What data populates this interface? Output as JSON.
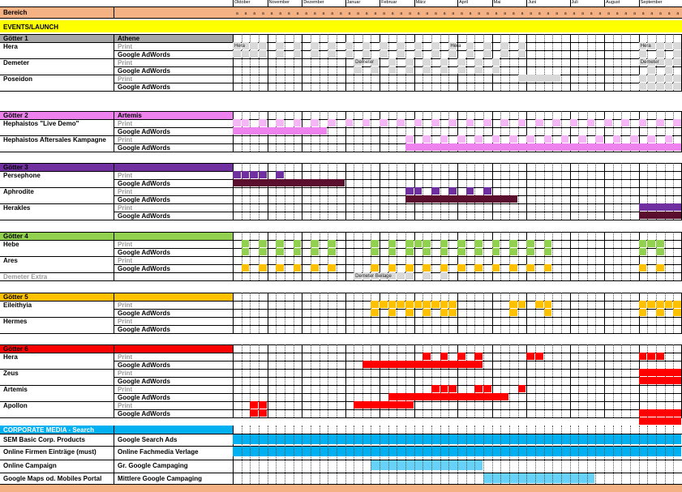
{
  "header": {
    "bereich": "Bereich",
    "months": [
      "Oktober",
      "November",
      "Dezember",
      "Januar",
      "Februar",
      "März",
      "April",
      "Mai",
      "Juni",
      "Juli",
      "August",
      "September"
    ],
    "week_marker": "a"
  },
  "events_title": "EVENTS/LAUNCH",
  "colors": {
    "header": "#f4b183",
    "events": "#ffff00",
    "g1": "#a6a6a6",
    "g1_light": "#d9d9d9",
    "g2": "#ee82ee",
    "g2_light": "#f4b6f4",
    "g3": "#7030a0",
    "g3_dark": "#5b0f2e",
    "g4": "#92d050",
    "g4_orange": "#ffc000",
    "g5": "#ffc000",
    "g6": "#ff0000",
    "corp": "#00b0f0",
    "corp_light": "#67d2f8"
  },
  "sections": [
    {
      "name": "Götter 1",
      "sub": "Athene",
      "rows": [
        {
          "label": "Hera",
          "print": "Print",
          "ads": "Google AdWords"
        },
        {
          "label": "Demeter",
          "print": "Print",
          "ads": "Google AdWords"
        },
        {
          "label": "Poseidon",
          "print": "Print",
          "ads": "Google AdWords"
        }
      ]
    },
    {
      "name": "Götter 2",
      "sub": "Artemis",
      "rows": [
        {
          "label": "Hephaistos \"Live Demo\"",
          "print": "Print",
          "ads": "Google AdWords"
        },
        {
          "label": "Hephaistos Aftersales Kampagne",
          "print": "Print",
          "ads": "Google AdWords"
        }
      ]
    },
    {
      "name": "Götter 3",
      "sub": "",
      "rows": [
        {
          "label": "Persephone",
          "print": "Print",
          "ads": "Google AdWords"
        },
        {
          "label": "Aphrodite",
          "print": "Print",
          "ads": "Google AdWords"
        },
        {
          "label": "Herakles",
          "print": "Print",
          "ads": "Google AdWords"
        }
      ]
    },
    {
      "name": "Götter 4",
      "sub": "",
      "rows": [
        {
          "label": "Hebe",
          "print": "Print",
          "ads": "Google AdWords"
        },
        {
          "label": "Ares",
          "print": "Print",
          "ads": "Google AdWords"
        }
      ],
      "extra": "Demeter Extra"
    },
    {
      "name": "Götter 5",
      "sub": "",
      "rows": [
        {
          "label": "Eileithyia",
          "print": "Print",
          "ads": "Google AdWords"
        },
        {
          "label": "Hermes",
          "print": "Print",
          "ads": "Google AdWords"
        }
      ]
    },
    {
      "name": "Götter 6",
      "sub": "",
      "rows": [
        {
          "label": "Hera",
          "print": "Print",
          "ads": "Google AdWords"
        },
        {
          "label": "Zeus",
          "print": "Print",
          "ads": "Google AdWords"
        },
        {
          "label": "Artemis",
          "print": "Print",
          "ads": "Google AdWords"
        },
        {
          "label": "Apollon",
          "print": "Print",
          "ads": "Google AdWords"
        }
      ]
    }
  ],
  "annotations": {
    "hera_1": "Hera",
    "hera_2": "Hera",
    "hera_3": "Hera",
    "demeter_1": "Demeter",
    "demeter_2": "Demeter",
    "demeter_beilage": "Demeter Beilage"
  },
  "corporate": {
    "title": "CORPORATE MEDIA - Search",
    "rows": [
      {
        "label": "SEM Basic Corp. Products",
        "detail": "Google Search Ads"
      },
      {
        "label": "Online Firmen Einträge (must)",
        "detail": "Online Fachmedia Verlage"
      },
      {
        "label": "Online Campaign",
        "detail": "Gr. Google Campaging"
      },
      {
        "label": "Google Maps od. Mobiles Portal",
        "detail": "Mittlere Google Campaging"
      }
    ]
  }
}
